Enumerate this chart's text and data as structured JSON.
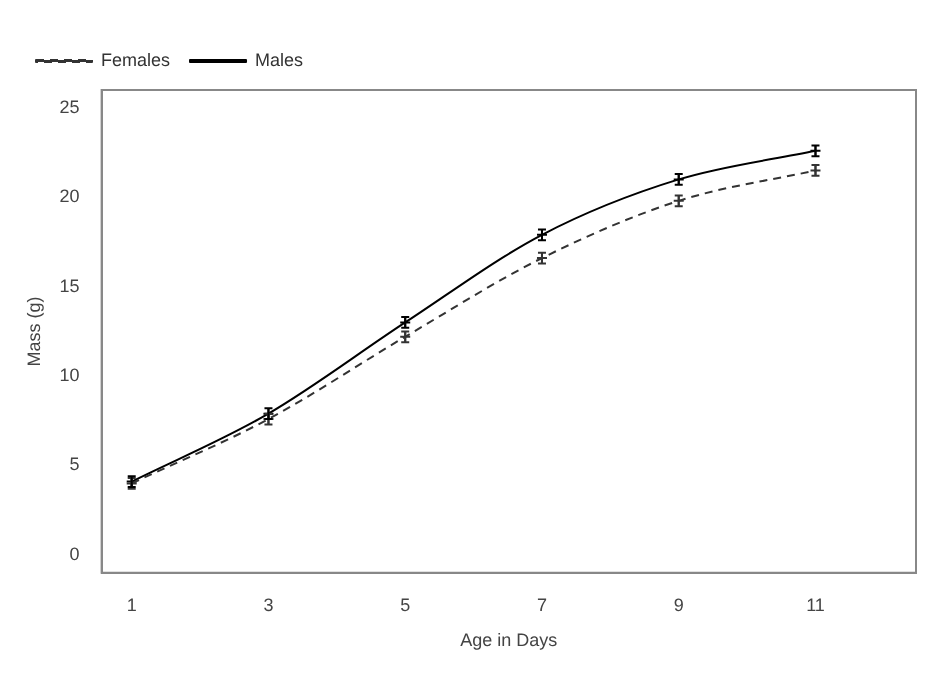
{
  "chart_data": {
    "type": "line",
    "xlabel": "Age in Days",
    "ylabel": "Mass (g)",
    "x": [
      1,
      3,
      5,
      7,
      9,
      11
    ],
    "series": [
      {
        "name": "Females",
        "color": "#333333",
        "values": [
          4.0,
          7.6,
          12.2,
          16.6,
          19.8,
          21.5
        ],
        "errors": [
          0.3,
          0.3,
          0.3,
          0.3,
          0.3,
          0.3
        ],
        "line_style": "dashed",
        "marker": "cross"
      },
      {
        "name": "Males",
        "color": "#000000",
        "values": [
          4.1,
          7.9,
          13.0,
          17.9,
          21.0,
          22.6
        ],
        "errors": [
          0.3,
          0.3,
          0.3,
          0.3,
          0.3,
          0.3
        ],
        "line_style": "solid",
        "marker": "cross"
      }
    ],
    "xlim": [
      0.56,
      12.47
    ],
    "xticks": [
      1,
      3,
      5,
      7,
      9,
      11
    ],
    "ylim": [
      -1,
      26
    ],
    "yticks": [
      0,
      5,
      10,
      15,
      20,
      25
    ],
    "grid": false,
    "legend": "top left"
  }
}
